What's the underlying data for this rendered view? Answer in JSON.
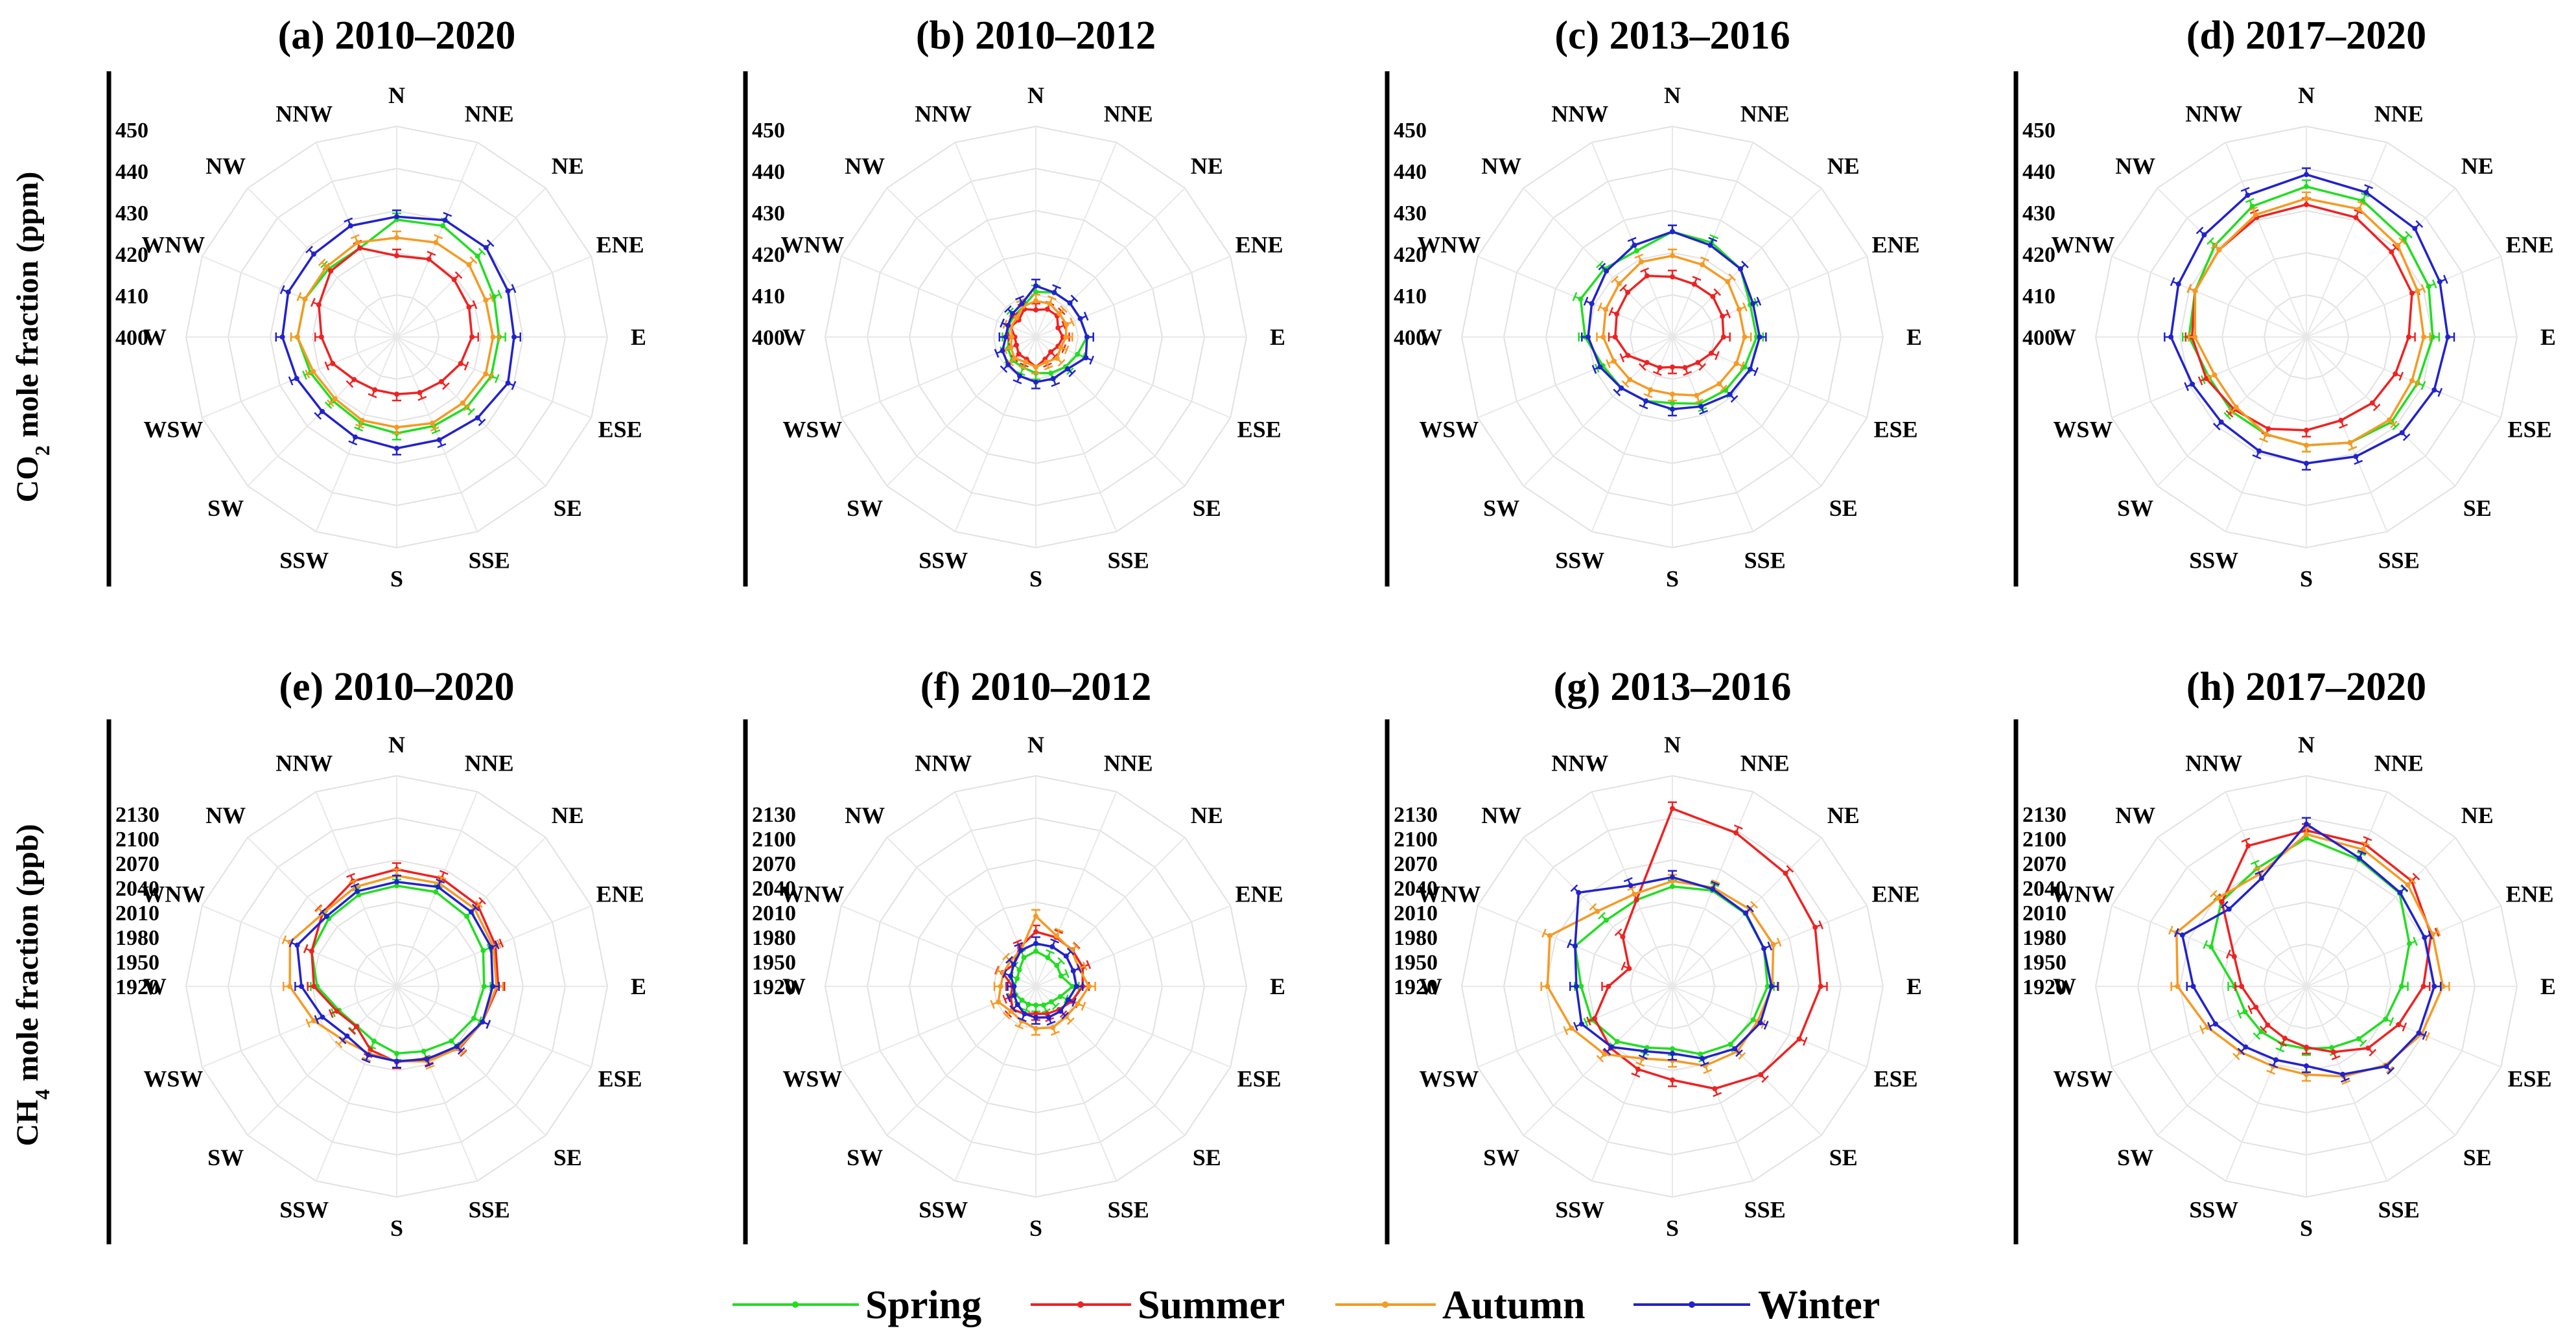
{
  "figure": {
    "row_labels": {
      "co2": {
        "prefix": "CO",
        "sub": "2",
        "suffix": " mole fraction (ppm)"
      },
      "ch4": {
        "prefix": "CH",
        "sub": "4",
        "suffix": " mole fraction (ppb)"
      }
    },
    "directions": [
      "N",
      "NNE",
      "NE",
      "ENE",
      "E",
      "ESE",
      "SE",
      "SSE",
      "S",
      "SSW",
      "SW",
      "WSW",
      "W",
      "WNW",
      "NW",
      "NNW"
    ],
    "legend": [
      {
        "name": "Spring",
        "color": "#22dd22"
      },
      {
        "name": "Summer",
        "color": "#ee2222"
      },
      {
        "name": "Autumn",
        "color": "#f59a23"
      },
      {
        "name": "Winter",
        "color": "#2222cc"
      }
    ]
  },
  "chart_data": [
    {
      "type": "radar",
      "title": "(a) 2010–2020",
      "ylabel": "CO2 mole fraction (ppm)",
      "categories": [
        "N",
        "NNE",
        "NE",
        "ENE",
        "E",
        "ESE",
        "SE",
        "SSE",
        "S",
        "SSW",
        "SW",
        "WSW",
        "W",
        "WNW",
        "NW",
        "NNW"
      ],
      "rlim": [
        385,
        455
      ],
      "ticks": [
        400,
        410,
        420,
        430,
        440,
        450
      ],
      "show_ticks": true,
      "series": [
        {
          "name": "Spring",
          "values": [
            424,
            425,
            423,
            420,
            419,
            419,
            418,
            417,
            417,
            416,
            415,
            416,
            418,
            418,
            417,
            417
          ]
        },
        {
          "name": "Summer",
          "values": [
            412,
            413,
            412,
            411,
            410,
            408,
            406,
            405,
            404,
            404,
            405,
            408,
            410,
            413,
            416,
            417
          ]
        },
        {
          "name": "Autumn",
          "values": [
            418,
            419,
            419,
            417,
            417,
            417,
            416,
            416,
            415,
            415,
            414,
            415,
            418,
            418,
            418,
            419
          ]
        },
        {
          "name": "Winter",
          "values": [
            425,
            427,
            427,
            425,
            424,
            425,
            423,
            422,
            422,
            421,
            420,
            421,
            423,
            424,
            424,
            425
          ]
        }
      ]
    },
    {
      "type": "radar",
      "title": "(b) 2010–2012",
      "categories": [
        "N",
        "NNE",
        "NE",
        "ENE",
        "E",
        "ESE",
        "SE",
        "SSE",
        "S",
        "SSW",
        "SW",
        "WSW",
        "W",
        "WNW",
        "NW",
        "NNW"
      ],
      "rlim": [
        385,
        455
      ],
      "ticks": [
        400,
        410,
        420,
        430,
        440,
        450
      ],
      "show_ticks": true,
      "series": [
        {
          "name": "Spring",
          "values": [
            400,
            401,
            401,
            401,
            402,
            400,
            399,
            398,
            397,
            396,
            396,
            395,
            394,
            395,
            395,
            396
          ]
        },
        {
          "name": "Summer",
          "values": [
            394,
            395,
            395,
            393,
            394,
            393,
            392,
            393,
            395,
            393,
            393,
            392,
            392,
            394,
            393,
            395
          ]
        },
        {
          "name": "Autumn",
          "values": [
            397,
            397,
            396,
            396,
            395,
            394,
            395,
            394,
            395,
            394,
            395,
            394,
            393,
            394,
            394,
            396
          ]
        },
        {
          "name": "Winter",
          "values": [
            402,
            401,
            401,
            401,
            402,
            403,
            400,
            400,
            400,
            399,
            398,
            397,
            395,
            395,
            396,
            397
          ]
        }
      ]
    },
    {
      "type": "radar",
      "title": "(c) 2013–2016",
      "categories": [
        "N",
        "NNE",
        "NE",
        "ENE",
        "E",
        "ESE",
        "SE",
        "SSE",
        "S",
        "SSW",
        "SW",
        "WSW",
        "W",
        "WNW",
        "NW",
        "NNW"
      ],
      "rlim": [
        385,
        455
      ],
      "ticks": [
        400,
        410,
        420,
        430,
        440,
        450
      ],
      "show_ticks": true,
      "series": [
        {
          "name": "Spring",
          "values": [
            420,
            419,
            417,
            413,
            413,
            411,
            410,
            409,
            407,
            408,
            409,
            410,
            414,
            418,
            417,
            416
          ]
        },
        {
          "name": "Summer",
          "values": [
            405,
            404,
            404,
            403,
            402,
            399,
            397,
            396,
            395,
            396,
            397,
            401,
            404,
            405,
            406,
            407
          ]
        },
        {
          "name": "Autumn",
          "values": [
            412,
            411,
            411,
            409,
            409,
            408,
            407,
            406,
            404,
            404,
            405,
            406,
            408,
            409,
            410,
            412
          ]
        },
        {
          "name": "Winter",
          "values": [
            420,
            418,
            417,
            414,
            414,
            413,
            412,
            410,
            409,
            408,
            409,
            411,
            413,
            414,
            416,
            418
          ]
        }
      ]
    },
    {
      "type": "radar",
      "title": "(d) 2017–2020",
      "categories": [
        "N",
        "NNE",
        "NE",
        "ENE",
        "E",
        "ESE",
        "SE",
        "SSE",
        "S",
        "SSW",
        "SW",
        "WSW",
        "W",
        "WNW",
        "NW",
        "NNW"
      ],
      "rlim": [
        385,
        455
      ],
      "ticks": [
        400,
        410,
        420,
        430,
        440,
        450
      ],
      "show_ticks": true,
      "series": [
        {
          "name": "Spring",
          "values": [
            435,
            434,
            431,
            429,
            427,
            425,
            425,
            423,
            421,
            420,
            420,
            420,
            424,
            425,
            428,
            432
          ]
        },
        {
          "name": "Summer",
          "values": [
            429,
            428,
            425,
            423,
            419,
            417,
            416,
            415,
            416,
            418,
            419,
            421,
            423,
            425,
            426,
            428
          ]
        },
        {
          "name": "Autumn",
          "values": [
            431,
            431,
            428,
            425,
            424,
            423,
            424,
            423,
            421,
            420,
            418,
            418,
            422,
            425,
            426,
            429
          ]
        },
        {
          "name": "Winter",
          "values": [
            439,
            437,
            436,
            433,
            432,
            431,
            430,
            428,
            427,
            426,
            425,
            426,
            430,
            431,
            433,
            436
          ]
        }
      ]
    },
    {
      "type": "radar",
      "title": "(e) 2010–2020",
      "ylabel": "CH4 mole fraction (ppb)",
      "categories": [
        "N",
        "NNE",
        "NE",
        "ENE",
        "E",
        "ESE",
        "SE",
        "SSE",
        "S",
        "SSW",
        "SW",
        "WSW",
        "W",
        "WNW",
        "NW",
        "NNW"
      ],
      "rlim": [
        1890,
        2160
      ],
      "ticks": [
        1920,
        1950,
        1980,
        2010,
        2040,
        2070,
        2100,
        2130
      ],
      "show_ticks": true,
      "series": [
        {
          "name": "Spring",
          "values": [
            2019,
            2021,
            2017,
            2010,
            2002,
            1997,
            1989,
            1980,
            1976,
            1966,
            1962,
            1970,
            1992,
            2008,
            2013,
            2017
          ]
        },
        {
          "name": "Summer",
          "values": [
            2040,
            2040,
            2037,
            2027,
            2020,
            2009,
            2003,
            1990,
            1987,
            1978,
            1963,
            1973,
            1996,
            2008,
            2024,
            2036
          ]
        },
        {
          "name": "Autumn",
          "values": [
            2032,
            2033,
            2031,
            2024,
            2018,
            2009,
            2002,
            1994,
            1986,
            1983,
            1987,
            2005,
            2027,
            2038,
            2023,
            2028
          ]
        },
        {
          "name": "Winter",
          "values": [
            2024,
            2028,
            2025,
            2021,
            2013,
            2009,
            1999,
            1991,
            1986,
            1985,
            1980,
            1993,
            2012,
            2028,
            2017,
            2022
          ]
        }
      ]
    },
    {
      "type": "radar",
      "title": "(f) 2010–2012",
      "categories": [
        "N",
        "NNE",
        "NE",
        "ENE",
        "E",
        "ESE",
        "SE",
        "SSE",
        "S",
        "SSW",
        "SW",
        "WSW",
        "W",
        "WNW",
        "NW",
        "NNW"
      ],
      "rlim": [
        1890,
        2160
      ],
      "ticks": [
        1920,
        1950,
        1980,
        2010,
        2040,
        2070,
        2100,
        2130
      ],
      "show_ticks": true,
      "series": [
        {
          "name": "Spring",
          "values": [
            1935,
            1930,
            1928,
            1925,
            1937,
            1924,
            1918,
            1916,
            1914,
            1915,
            1915,
            1918,
            1918,
            1916,
            1920,
            1930
          ]
        },
        {
          "name": "Summer",
          "values": [
            1960,
            1958,
            1956,
            1955,
            1950,
            1940,
            1932,
            1928,
            1925,
            1928,
            1932,
            1925,
            1920,
            1936,
            1930,
            1944
          ]
        },
        {
          "name": "Autumn",
          "values": [
            1980,
            1960,
            1955,
            1950,
            1958,
            1948,
            1945,
            1947,
            1944,
            1938,
            1935,
            1942,
            1935,
            1935,
            1936,
            1940
          ]
        },
        {
          "name": "Winter",
          "values": [
            1945,
            1945,
            1945,
            1942,
            1942,
            1935,
            1935,
            1933,
            1930,
            1928,
            1923,
            1920,
            1918,
            1925,
            1930,
            1940
          ]
        }
      ]
    },
    {
      "type": "radar",
      "title": "(g) 2013–2016",
      "categories": [
        "N",
        "NNE",
        "NE",
        "ENE",
        "E",
        "ESE",
        "SE",
        "SSE",
        "S",
        "SSW",
        "SW",
        "WSW",
        "W",
        "WNW",
        "NW",
        "NNW"
      ],
      "rlim": [
        1890,
        2160
      ],
      "ticks": [
        1920,
        1950,
        1980,
        2010,
        2040,
        2070,
        2100,
        2130
      ],
      "show_ticks": true,
      "series": [
        {
          "name": "Spring",
          "values": [
            2018,
            2023,
            2022,
            2017,
            2012,
            2002,
            1995,
            1984,
            1970,
            1975,
            1990,
            2002,
            2007,
            2025,
            2010,
            2010
          ]
        },
        {
          "name": "Summer",
          "values": [
            2118,
            2103,
            2095,
            2088,
            2080,
            2066,
            2050,
            2032,
            2010,
            2005,
            2002,
            1998,
            1972,
            1950,
            1980,
            2010
          ]
        },
        {
          "name": "Autumn",
          "values": [
            2025,
            2027,
            2030,
            2030,
            2018,
            2008,
            2008,
            2000,
            1985,
            1990,
            2013,
            2030,
            2050,
            2060,
            2026,
            2018
          ]
        },
        {
          "name": "Winter",
          "values": [
            2030,
            2025,
            2023,
            2017,
            2017,
            2012,
            2003,
            1990,
            1976,
            1980,
            2000,
            2016,
            2013,
            2025,
            2060,
            2030
          ]
        }
      ]
    },
    {
      "type": "radar",
      "title": "(h) 2017–2020",
      "categories": [
        "N",
        "NNE",
        "NE",
        "ENE",
        "E",
        "ESE",
        "SE",
        "SSE",
        "S",
        "SSW",
        "SW",
        "WSW",
        "W",
        "WNW",
        "NW",
        "NNW"
      ],
      "rlim": [
        1890,
        2160
      ],
      "ticks": [
        1920,
        1950,
        1980,
        2010,
        2040,
        2070,
        2100,
        2130
      ],
      "show_ticks": true,
      "series": [
        {
          "name": "Spring",
          "values": [
            2080,
            2066,
            2059,
            2033,
            2012,
            2000,
            1985,
            1975,
            1970,
            1970,
            1972,
            1975,
            1982,
            2022,
            2044,
            2054
          ]
        },
        {
          "name": "Summer",
          "values": [
            2090,
            2087,
            2081,
            2063,
            2040,
            2018,
            2002,
            1981,
            1968,
            1962,
            1960,
            1960,
            1973,
            1990,
            2043,
            2085
          ]
        },
        {
          "name": "Autumn",
          "values": [
            2085,
            2080,
            2074,
            2065,
            2065,
            2050,
            2033,
            2015,
            2003,
            2001,
            2009,
            2027,
            2055,
            2070,
            2050,
            2046
          ]
        },
        {
          "name": "Winter",
          "values": [
            2098,
            2068,
            2060,
            2054,
            2054,
            2046,
            2035,
            2012,
            1992,
            1992,
            2000,
            2016,
            2035,
            2062,
            2030,
            2040
          ]
        }
      ]
    }
  ]
}
